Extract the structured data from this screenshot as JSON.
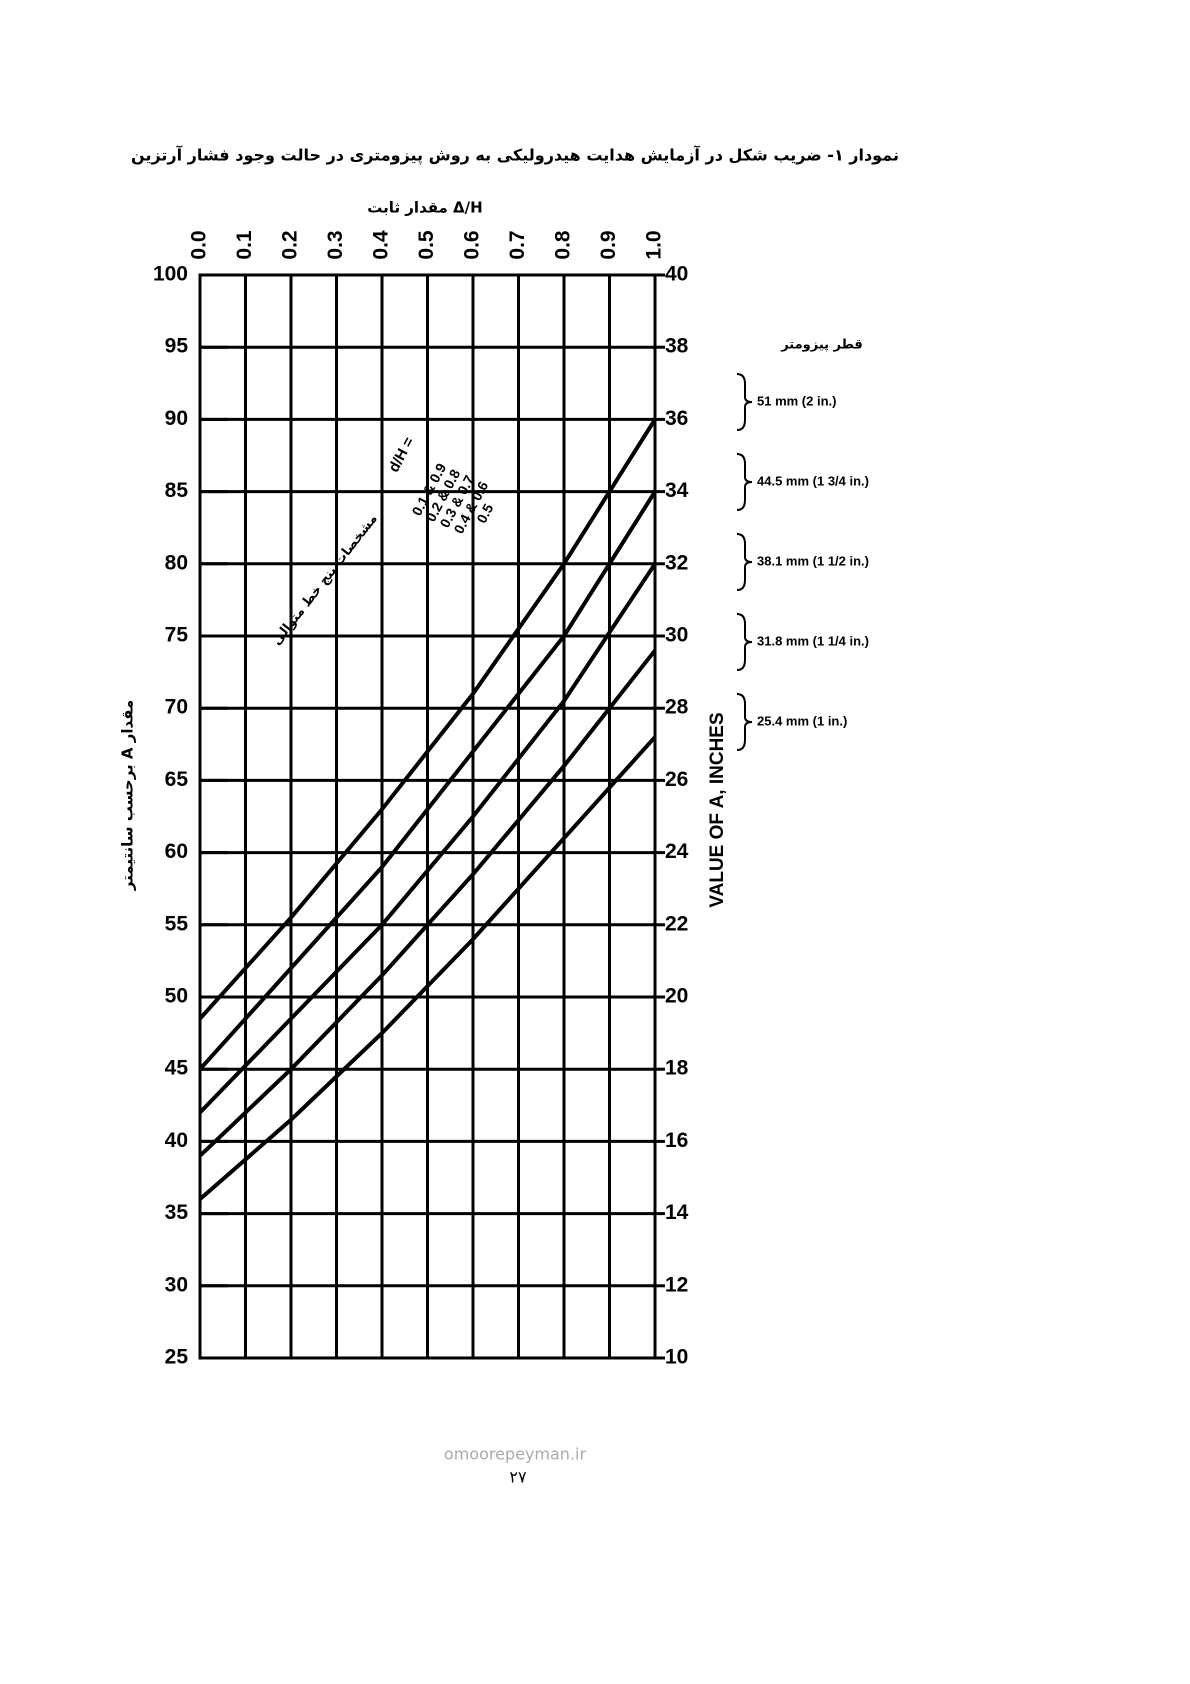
{
  "chart_data": {
    "type": "line",
    "title": "نمودار ۱- ضریب شکل در آزمایش هدایت هیدرولیکی به روش پیزومتری در حالت وجود فشار آرتزین",
    "x_label": "مقدار ثابت Δ/H",
    "y_label": "مقدار A برحسب سانتیمتر",
    "y2_label": "VALUE OF A, INCHES",
    "legend_title": "قطر پیزومتر",
    "x": [
      0,
      0.2,
      0.4,
      0.6,
      0.8,
      1
    ],
    "xlim": [
      0,
      1
    ],
    "xticks": [
      {
        "value": 0,
        "label": "0.0"
      },
      0.1,
      0.2,
      0.3,
      0.4,
      0.5,
      0.6,
      0.7,
      0.8,
      0.9,
      {
        "value": 1,
        "label": "1.0"
      }
    ],
    "ylim": [
      25,
      100
    ],
    "yticks": [
      25,
      30,
      35,
      40,
      45,
      50,
      55,
      60,
      65,
      70,
      75,
      80,
      85,
      90,
      95,
      100
    ],
    "y2lim": [
      10,
      40
    ],
    "y2ticks": [
      10,
      12,
      14,
      16,
      18,
      20,
      22,
      24,
      26,
      28,
      30,
      32,
      34,
      36,
      38,
      40
    ],
    "grid": true,
    "series": [
      {
        "name": "51 mm (2 in.)",
        "color": "#000000",
        "values": [
          48.5,
          55.5,
          63,
          71,
          80,
          90
        ]
      },
      {
        "name": "44.5 mm (1 3/4 in.)",
        "color": "#000000",
        "values": [
          45,
          52,
          59,
          67,
          75,
          85
        ]
      },
      {
        "name": "38.1 mm (1 1/2 in.)",
        "color": "#000000",
        "values": [
          42,
          48.5,
          55,
          62.5,
          70.5,
          80
        ]
      },
      {
        "name": "31.8 mm (1 1/4 in.)",
        "color": "#000000",
        "values": [
          39,
          45,
          51.5,
          58.5,
          66,
          74
        ]
      },
      {
        "name": "25.4 mm (1 in.)",
        "color": "#000000",
        "values": [
          36,
          41.5,
          47.5,
          54,
          61,
          68
        ]
      }
    ],
    "annotations": {
      "band_note": "مشخصات پنج خط متوالی",
      "dh_heading": "d/H =",
      "dh_pairs": [
        "0.1 & 0.9",
        "0.2 & 0.8",
        "0.3 & 0.7",
        "0.4 & 0.6",
        "0.5"
      ]
    }
  },
  "page_number": "۲۷",
  "watermark": "omoorepeyman.ir"
}
